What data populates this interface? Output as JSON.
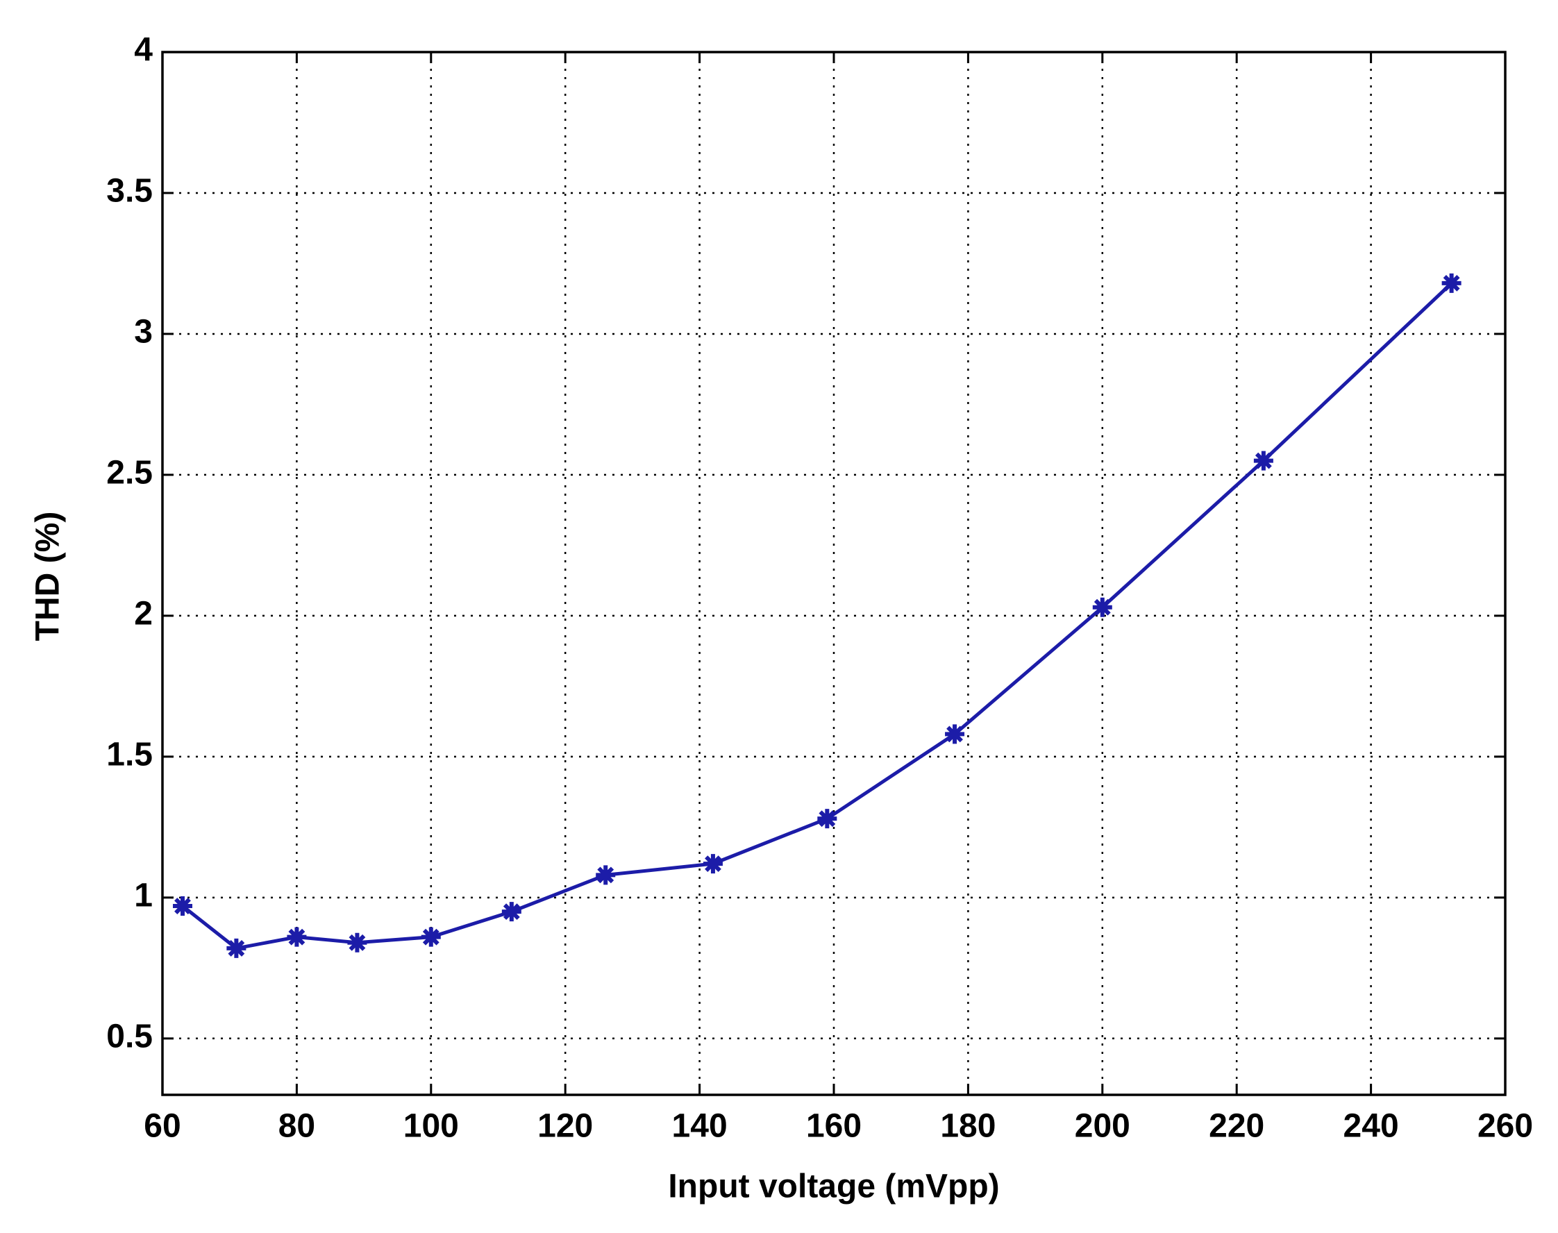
{
  "chart_data": {
    "type": "line",
    "x_label": "Input voltage (mVpp)",
    "y_label": "THD (%)",
    "series": [
      {
        "color": "#1c1ca8",
        "x": [
          63,
          71,
          80,
          89,
          100,
          112,
          126,
          142,
          159,
          178,
          200,
          224,
          252
        ],
        "values": [
          0.97,
          0.82,
          0.86,
          0.84,
          0.86,
          0.95,
          1.08,
          1.12,
          1.28,
          1.58,
          2.03,
          2.55,
          3.18
        ]
      }
    ],
    "xlim": [
      60,
      260
    ],
    "xticks": [
      60,
      80,
      100,
      120,
      140,
      160,
      180,
      200,
      220,
      240,
      260
    ],
    "ylim": [
      0.3,
      4
    ],
    "yticks": [
      0.5,
      1,
      1.5,
      2,
      2.5,
      3,
      3.5,
      4
    ],
    "grid": true
  }
}
